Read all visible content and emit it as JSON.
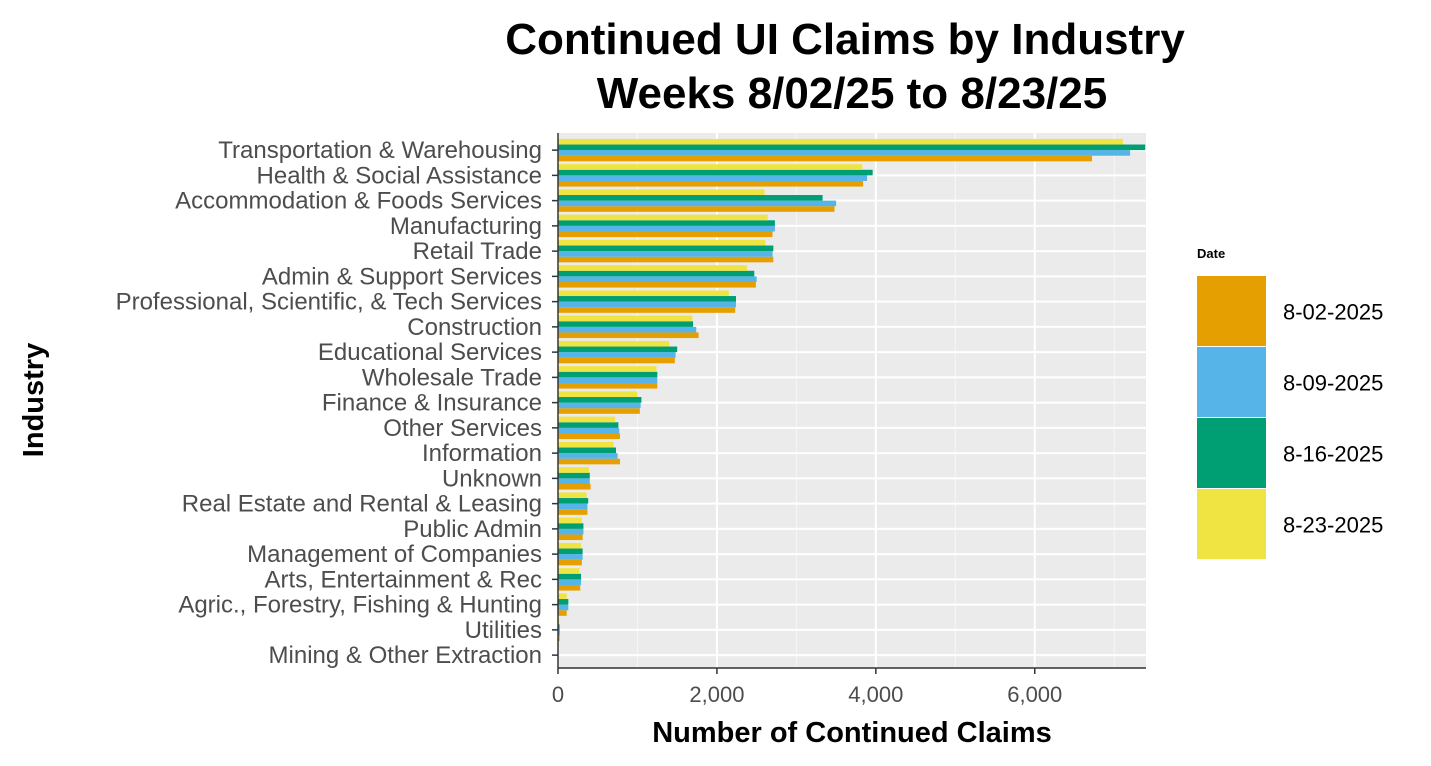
{
  "chart_data": {
    "type": "bar",
    "orientation": "horizontal",
    "title": "Continued UI Claims by Industry",
    "subtitle": "Weeks 8/02/25 to 8/23/25",
    "xlabel": "Number of Continued Claims",
    "ylabel": "Industry",
    "xlim": [
      0,
      7400
    ],
    "xticks": [
      0,
      2000,
      4000,
      6000
    ],
    "xtick_labels": [
      "0",
      "2,000",
      "4,000",
      "6,000"
    ],
    "grid": true,
    "legend": {
      "title": "Date",
      "placement": "right",
      "entries": [
        "8-02-2025",
        "8-09-2025",
        "8-16-2025",
        "8-23-2025"
      ]
    },
    "colors": [
      "#E69F00",
      "#56B4E9",
      "#009E73",
      "#F0E442"
    ],
    "categories": [
      "Transportation & Warehousing",
      "Health & Social Assistance",
      "Accommodation & Foods Services",
      "Manufacturing",
      "Retail Trade",
      "Admin & Support Services",
      "Professional, Scientific, & Tech Services",
      "Construction",
      "Educational Services",
      "Wholesale Trade",
      "Finance & Insurance",
      "Other Services",
      "Information",
      "Unknown",
      "Real Estate and Rental & Leasing",
      "Public Admin",
      "Management of Companies",
      "Arts, Entertainment & Rec",
      "Agric., Forestry, Fishing & Hunting",
      "Utilities",
      "Mining & Other Extraction"
    ],
    "series": [
      {
        "name": "8-02-2025",
        "values": [
          6720,
          3840,
          3480,
          2700,
          2710,
          2490,
          2230,
          1770,
          1470,
          1250,
          1030,
          780,
          780,
          410,
          370,
          310,
          300,
          280,
          110,
          20,
          0
        ]
      },
      {
        "name": "8-09-2025",
        "values": [
          7200,
          3890,
          3500,
          2730,
          2700,
          2500,
          2240,
          1740,
          1480,
          1250,
          1040,
          770,
          750,
          400,
          370,
          320,
          310,
          290,
          130,
          25,
          0
        ]
      },
      {
        "name": "8-16-2025",
        "values": [
          7390,
          3960,
          3330,
          2730,
          2710,
          2470,
          2240,
          1700,
          1500,
          1250,
          1050,
          760,
          730,
          400,
          380,
          320,
          310,
          290,
          130,
          20,
          0
        ]
      },
      {
        "name": "8-23-2025",
        "values": [
          7110,
          3830,
          2600,
          2640,
          2610,
          2380,
          2150,
          1690,
          1400,
          1240,
          1000,
          720,
          700,
          390,
          360,
          300,
          290,
          270,
          110,
          15,
          0
        ]
      }
    ]
  }
}
